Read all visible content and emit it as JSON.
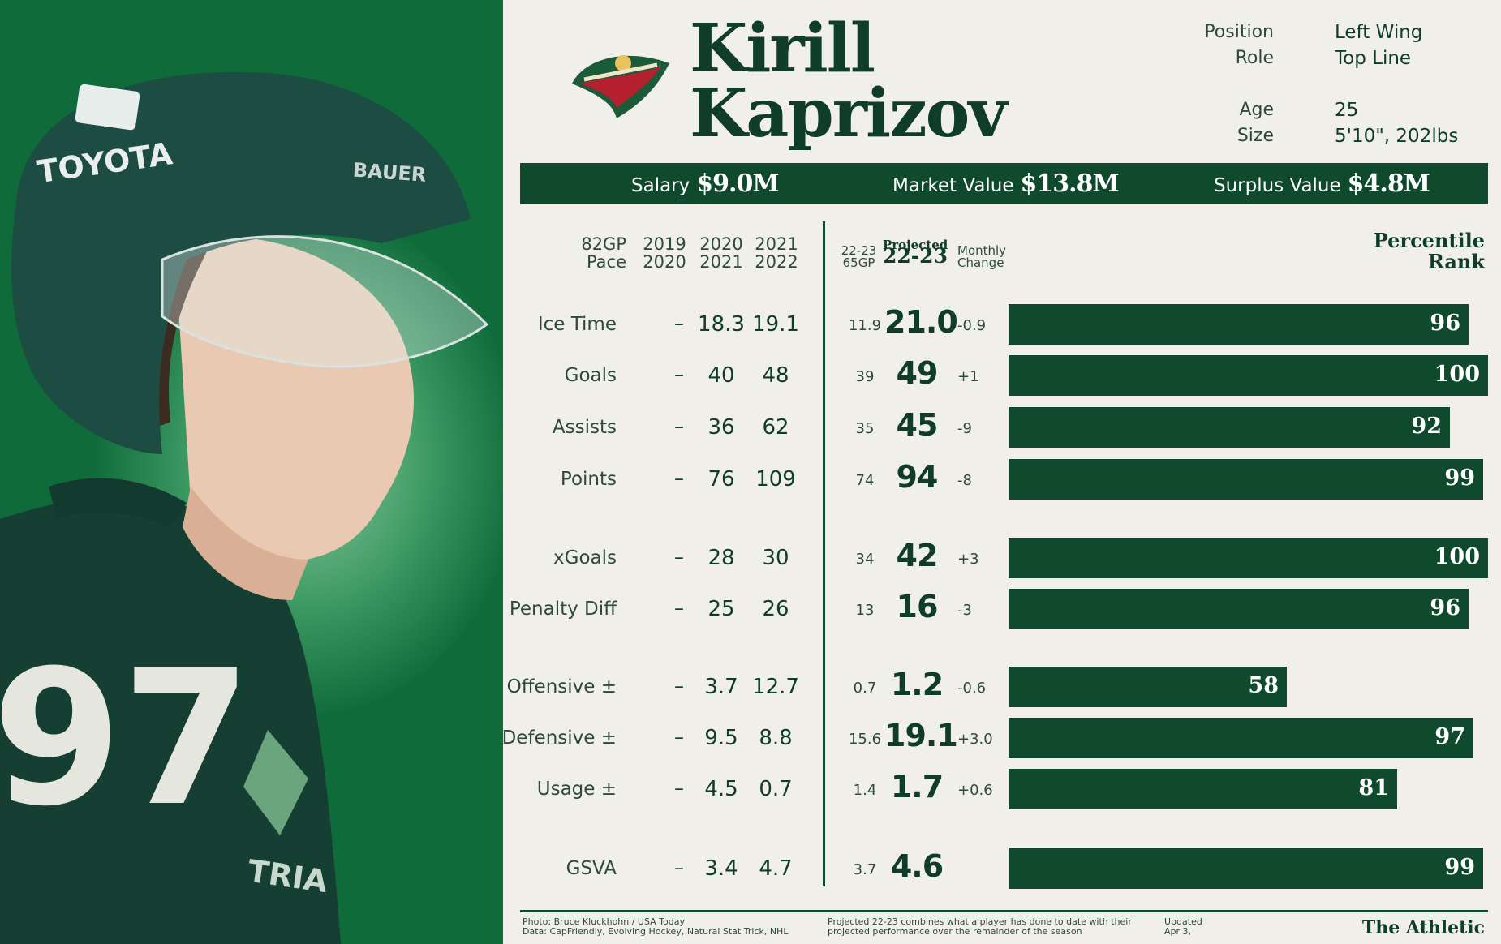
{
  "player": {
    "first_name": "Kirill",
    "last_name": "Kaprizov"
  },
  "info": {
    "position_label": "Position",
    "position": "Left Wing",
    "role_label": "Role",
    "role": "Top Line",
    "age_label": "Age",
    "age": "25",
    "size_label": "Size",
    "size": "5'10\", 202lbs"
  },
  "contract": {
    "salary_label": "Salary",
    "salary": "$9.0M",
    "market_label": "Market Value",
    "market": "$13.8M",
    "surplus_label": "Surplus Value",
    "surplus": "$4.8M"
  },
  "headers": {
    "pace_1": "82GP",
    "pace_2": "Pace",
    "y1_1": "2019",
    "y1_2": "2020",
    "y2_1": "2020",
    "y2_2": "2021",
    "y3_1": "2021",
    "y3_2": "2022",
    "g65_1": "22-23",
    "g65_2": "65GP",
    "proj_1": "Projected",
    "proj_2": "22-23",
    "chg_1": "Monthly",
    "chg_2": "Change",
    "pct_1": "Percentile",
    "pct_2": "Rank"
  },
  "rows": [
    {
      "stat": "Ice Time",
      "pace": "–",
      "y2021": "18.3",
      "y2022": "19.1",
      "g65": "11.9",
      "proj": "21.0",
      "chg": "-0.9",
      "pct": 96,
      "pct_label": "96"
    },
    {
      "stat": "Goals",
      "pace": "–",
      "y2021": "40",
      "y2022": "48",
      "g65": "39",
      "proj": "49",
      "chg": "+1",
      "pct": 100,
      "pct_label": "100"
    },
    {
      "stat": "Assists",
      "pace": "–",
      "y2021": "36",
      "y2022": "62",
      "g65": "35",
      "proj": "45",
      "chg": "-9",
      "pct": 92,
      "pct_label": "92"
    },
    {
      "stat": "Points",
      "pace": "–",
      "y2021": "76",
      "y2022": "109",
      "g65": "74",
      "proj": "94",
      "chg": "-8",
      "pct": 99,
      "pct_label": "99"
    },
    {
      "stat": "xGoals",
      "pace": "–",
      "y2021": "28",
      "y2022": "30",
      "g65": "34",
      "proj": "42",
      "chg": "+3",
      "pct": 100,
      "pct_label": "100"
    },
    {
      "stat": "Penalty Diff",
      "pace": "–",
      "y2021": "25",
      "y2022": "26",
      "g65": "13",
      "proj": "16",
      "chg": "-3",
      "pct": 96,
      "pct_label": "96"
    },
    {
      "stat": "Offensive ±",
      "pace": "–",
      "y2021": "3.7",
      "y2022": "12.7",
      "g65": "0.7",
      "proj": "1.2",
      "chg": "-0.6",
      "pct": 58,
      "pct_label": "58"
    },
    {
      "stat": "Defensive ±",
      "pace": "–",
      "y2021": "9.5",
      "y2022": "8.8",
      "g65": "15.6",
      "proj": "19.1",
      "chg": "+3.0",
      "pct": 97,
      "pct_label": "97"
    },
    {
      "stat": "Usage ±",
      "pace": "–",
      "y2021": "4.5",
      "y2022": "0.7",
      "g65": "1.4",
      "proj": "1.7",
      "chg": "+0.6",
      "pct": 81,
      "pct_label": "81"
    },
    {
      "stat": "GSVA",
      "pace": "–",
      "y2021": "3.4",
      "y2022": "4.7",
      "g65": "3.7",
      "proj": "4.6",
      "chg": "",
      "pct": 99,
      "pct_label": "99"
    }
  ],
  "photo": {
    "helmet_brand": "TOYOTA",
    "helmet_maker": "BAUER",
    "jersey_number": "97",
    "jersey_patch": "TRIA"
  },
  "footer": {
    "photo_credit": "Photo: Bruce Kluckhohn / USA Today",
    "data_credit": "Data: CapFriendly, Evolving Hockey, Natural Stat Trick, NHL",
    "note_1": "Projected 22-23 combines what a player has done to date with their",
    "note_2": "projected performance over the remainder of the season",
    "updated_1": "Updated",
    "updated_2": "Apr 3,",
    "brand": "The Athletic"
  },
  "colors": {
    "accent_dark": "#0f4a2d",
    "panel_green": "#0f6b3a",
    "background": "#f1efea"
  }
}
